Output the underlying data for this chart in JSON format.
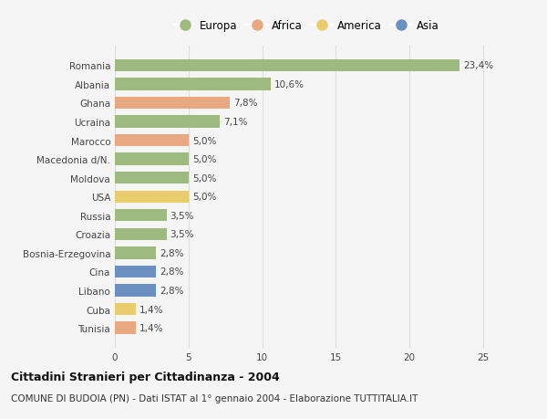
{
  "categories": [
    "Romania",
    "Albania",
    "Ghana",
    "Ucraina",
    "Marocco",
    "Macedonia d/N.",
    "Moldova",
    "USA",
    "Russia",
    "Croazia",
    "Bosnia-Erzegovina",
    "Cina",
    "Libano",
    "Cuba",
    "Tunisia"
  ],
  "values": [
    23.4,
    10.6,
    7.8,
    7.1,
    5.0,
    5.0,
    5.0,
    5.0,
    3.5,
    3.5,
    2.8,
    2.8,
    2.8,
    1.4,
    1.4
  ],
  "labels": [
    "23,4%",
    "10,6%",
    "7,8%",
    "7,1%",
    "5,0%",
    "5,0%",
    "5,0%",
    "5,0%",
    "3,5%",
    "3,5%",
    "2,8%",
    "2,8%",
    "2,8%",
    "1,4%",
    "1,4%"
  ],
  "continents": [
    "Europa",
    "Europa",
    "Africa",
    "Europa",
    "Africa",
    "Europa",
    "Europa",
    "America",
    "Europa",
    "Europa",
    "Europa",
    "Asia",
    "Asia",
    "America",
    "Africa"
  ],
  "colors": {
    "Europa": "#9eba7e",
    "Africa": "#e8a882",
    "America": "#e8cc6e",
    "Asia": "#6a8fc0"
  },
  "legend_order": [
    "Europa",
    "Africa",
    "America",
    "Asia"
  ],
  "title": "Cittadini Stranieri per Cittadinanza - 2004",
  "subtitle": "COMUNE DI BUDOIA (PN) - Dati ISTAT al 1° gennaio 2004 - Elaborazione TUTTITALIA.IT",
  "xlim": [
    0,
    26
  ],
  "xticks": [
    0,
    5,
    10,
    15,
    20,
    25
  ],
  "background_color": "#f5f5f5",
  "plot_bg_color": "#f5f5f5",
  "grid_color": "#dddddd",
  "bar_height": 0.65,
  "label_fontsize": 7.5,
  "tick_fontsize": 7.5,
  "title_fontsize": 9,
  "subtitle_fontsize": 7.5
}
